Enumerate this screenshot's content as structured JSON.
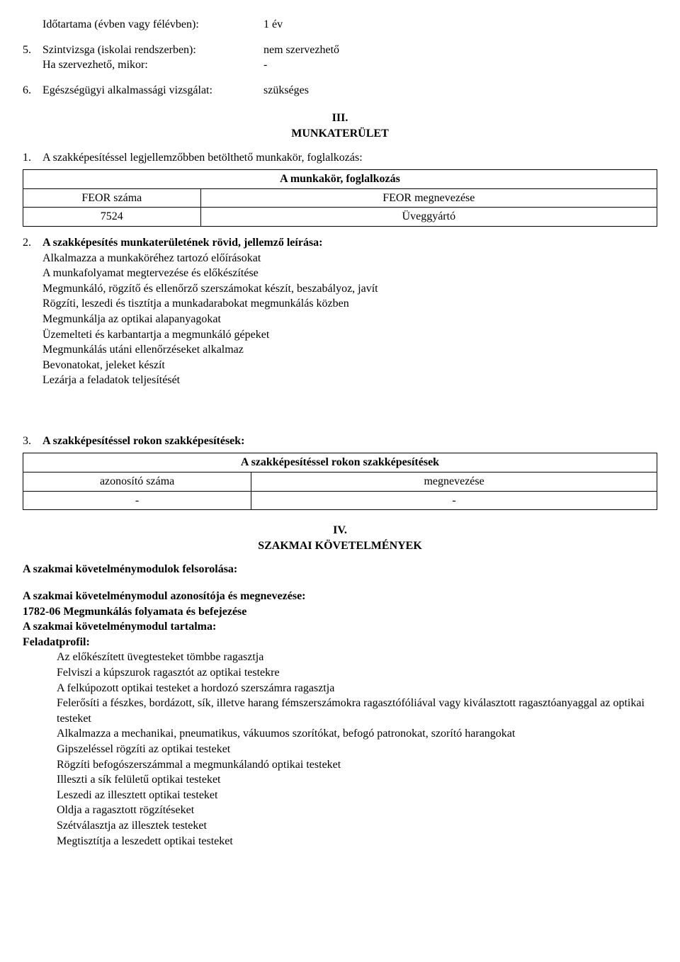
{
  "top": {
    "row1_label": "Időtartama (évben vagy félévben):",
    "row1_value": "1 év",
    "row5_num": "5.",
    "row5_label": "Szintvizsga (iskolai rendszerben):",
    "row5_value": "nem szervezhető",
    "row5b_label": "Ha szervezhető, mikor:",
    "row5b_value": "-",
    "row6_num": "6.",
    "row6_label": "Egészségügyi alkalmassági vizsgálat:",
    "row6_value": "szükséges"
  },
  "section3": {
    "roman": "III.",
    "title": "MUNKATERÜLET",
    "item1_num": "1.",
    "item1_text": "A szakképesítéssel legjellemzőbben betölthető munkakör, foglalkozás:",
    "table1": {
      "header_span": "A munkakör, foglalkozás",
      "h1": "FEOR száma",
      "h2": "FEOR megnevezése",
      "c1": "7524",
      "c2": "Üveggyártó"
    },
    "item2_num": "2.",
    "item2_bold": "A szakképesítés munkaterületének rövid, jellemző leírása:",
    "desc_lines": [
      "Alkalmazza a munkaköréhez tartozó előírásokat",
      "A munkafolyamat megtervezése és előkészítése",
      "Megmunkáló, rögzítő és ellenőrző szerszámokat készít, beszabályoz, javít",
      "Rögzíti, leszedi és tisztítja a munkadarabokat megmunkálás közben",
      "Megmunkálja az optikai alapanyagokat",
      "Üzemelteti és karbantartja a megmunkáló gépeket",
      "Megmunkálás utáni ellenőrzéseket alkalmaz",
      "Bevonatokat, jeleket készít",
      "Lezárja a feladatok teljesítését"
    ],
    "item3_num": "3.",
    "item3_text": "A szakképesítéssel rokon szakképesítések:",
    "table2": {
      "header_span": "A szakképesítéssel rokon szakképesítések",
      "h1": "azonosító száma",
      "h2": "megnevezése",
      "c1": "-",
      "c2": "-"
    }
  },
  "section4": {
    "roman": "IV.",
    "title": "SZAKMAI KÖVETELMÉNYEK",
    "line1": "A szakmai követelménymodulok felsorolása:",
    "line2": "A szakmai követelménymodul azonosítója és megnevezése:",
    "line3": "1782-06   Megmunkálás folyamata és befejezése",
    "line4": "A szakmai követelménymodul tartalma:",
    "line5": "Feladatprofil:",
    "tasks": [
      "Az előkészített üvegtesteket tömbbe ragasztja",
      "Felviszi a kúpszurok ragasztót az optikai testekre",
      "A felkúpozott optikai testeket a hordozó szerszámra ragasztja",
      "Felerősíti a fészkes, bordázott, sík, illetve harang fémszerszámokra ragasztófóliával vagy kiválasztott ragasztóanyaggal az optikai testeket",
      "Alkalmazza a mechanikai, pneumatikus, vákuumos szorítókat, befogó patronokat, szorító harangokat",
      "Gipszeléssel rögzíti az optikai testeket",
      "Rögzíti befogószerszámmal a megmunkálandó optikai testeket",
      "Illeszti a sík felületű optikai testeket",
      "Leszedi az illesztett optikai testeket",
      "Oldja a ragasztott rögzítéseket",
      "Szétválasztja az illesztek testeket",
      "Megtisztítja a leszedett optikai testeket"
    ]
  }
}
